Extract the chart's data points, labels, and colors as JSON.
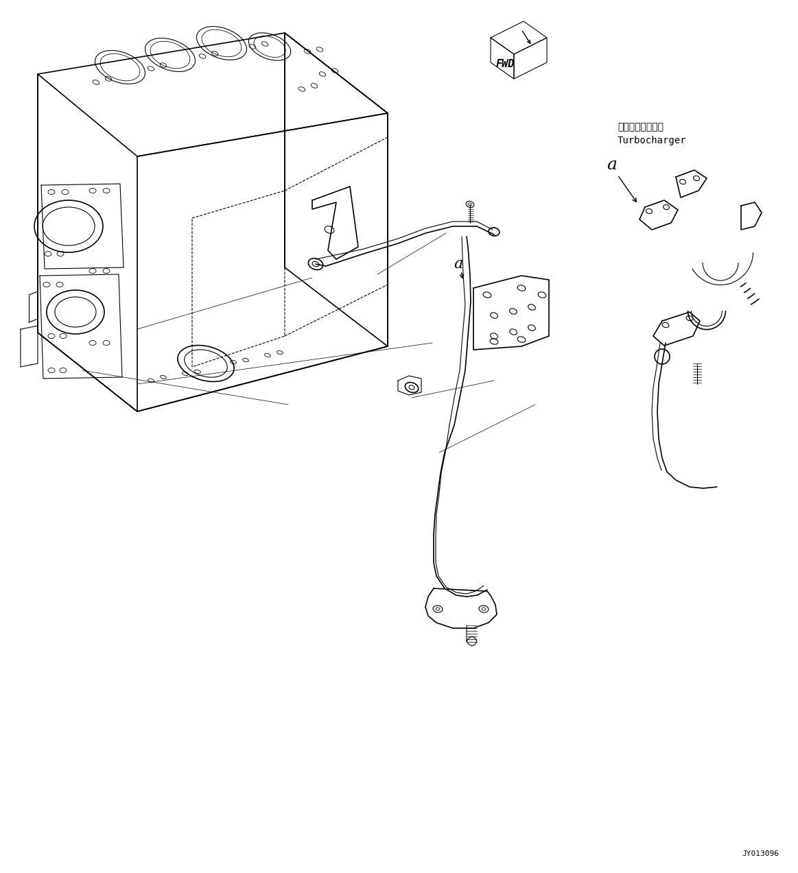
{
  "bg_color": "#ffffff",
  "line_color": "#000000",
  "fig_width": 11.63,
  "fig_height": 12.73,
  "dpi": 100,
  "part_number": "JY013096",
  "fwd_label": "FWD",
  "turbocharger_jp": "ターボチャージャ",
  "turbocharger_en": "Turbocharger",
  "label_a": "a",
  "lw_main": 1.2,
  "lw_detail": 0.8,
  "lw_thin": 0.5
}
